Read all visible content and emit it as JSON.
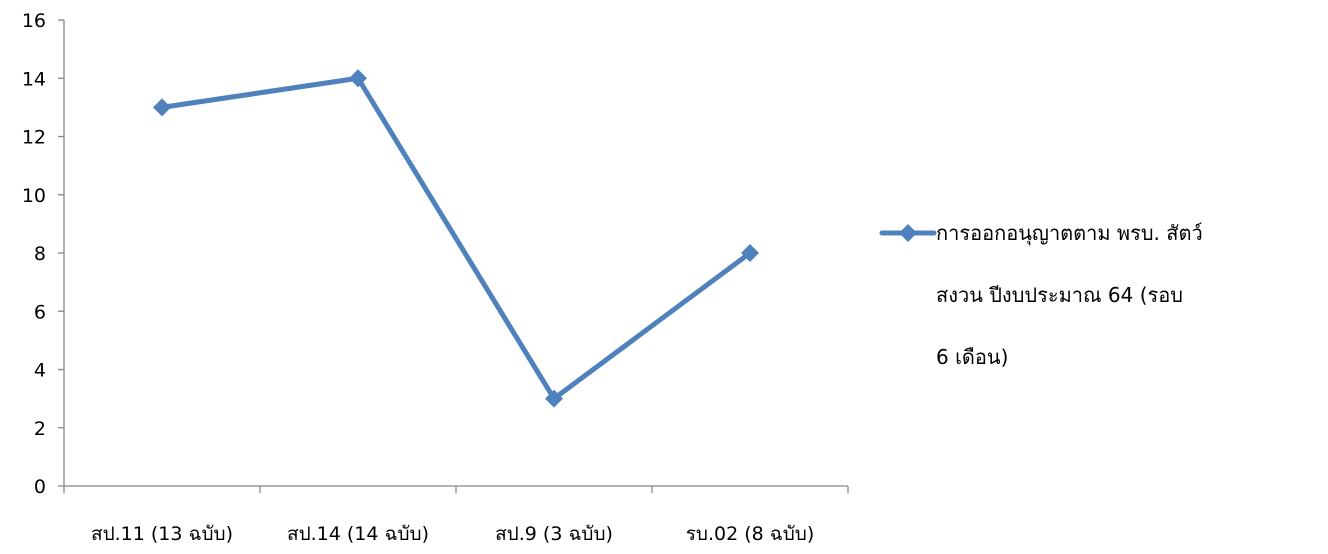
{
  "chart_data": {
    "type": "line",
    "categories": [
      "สป.11 (13 ฉบับ)",
      "สป.14 (14 ฉบับ)",
      "สป.9  (3 ฉบับ)",
      "รบ.02 (8 ฉบับ)"
    ],
    "series": [
      {
        "name": "การออกอนุญาตตาม พรบ. สัตว์ สงวน  ปีงบประมาณ 64   (รอบ 6 เดือน)",
        "legend_lines": [
          "การออกอนุญาตตาม พรบ. สัตว์",
          "สงวน  ปีงบประมาณ 64   (รอบ",
          "6 เดือน)"
        ],
        "values": [
          13,
          14,
          3,
          8
        ],
        "color": "#4f81bd",
        "marker": "diamond"
      }
    ],
    "title": "",
    "xlabel": "",
    "ylabel": "",
    "ylim": [
      0,
      16
    ],
    "yticks": [
      0,
      2,
      4,
      6,
      8,
      10,
      12,
      14,
      16
    ],
    "grid": false,
    "legend_position": "right"
  }
}
